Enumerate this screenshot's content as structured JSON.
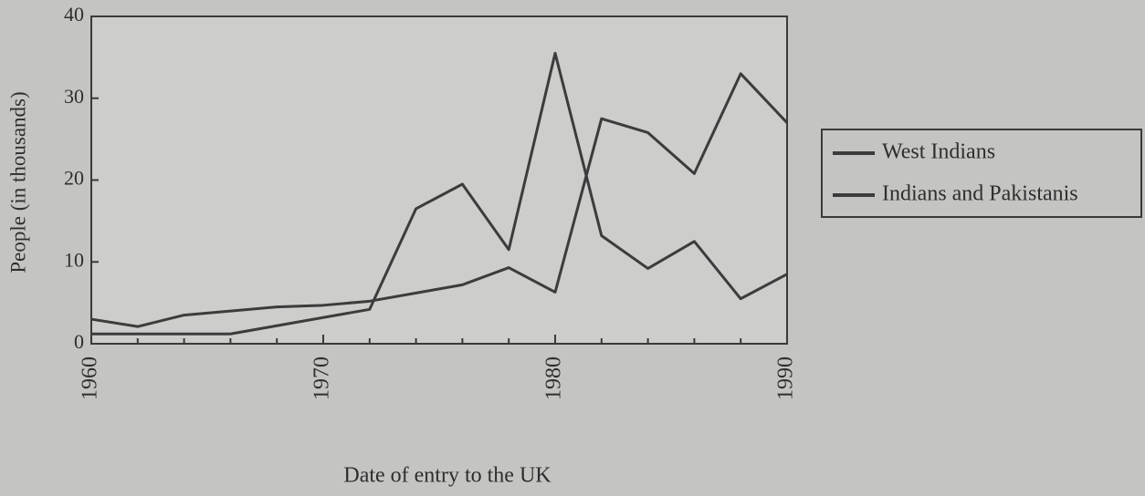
{
  "chart_data": {
    "type": "line",
    "xlabel": "Date of entry to the UK",
    "ylabel": "People (in thousands)",
    "x": [
      1960,
      1962,
      1964,
      1966,
      1968,
      1970,
      1972,
      1974,
      1976,
      1978,
      1980,
      1982,
      1984,
      1986,
      1988,
      1990
    ],
    "series": [
      {
        "name": "West Indians",
        "color": "#3c3c3c",
        "values": [
          1.2,
          1.2,
          1.2,
          1.2,
          2.2,
          3.2,
          4.2,
          16.5,
          19.5,
          11.5,
          35.5,
          13.2,
          9.2,
          12.5,
          5.5,
          8.5
        ]
      },
      {
        "name": "Indians and Pakistanis",
        "color": "#3c3c3c",
        "values": [
          3,
          2.1,
          3.5,
          4,
          4.5,
          4.7,
          5.2,
          6.2,
          7.2,
          9.3,
          6.3,
          27.5,
          25.8,
          20.8,
          33,
          27
        ]
      }
    ],
    "xlim": [
      1960,
      1990
    ],
    "xticks": [
      1960,
      1970,
      1980,
      1990
    ],
    "ylim": [
      0,
      40
    ],
    "yticks": [
      0,
      10,
      20,
      30,
      40
    ],
    "grid": false,
    "legend": "right"
  }
}
